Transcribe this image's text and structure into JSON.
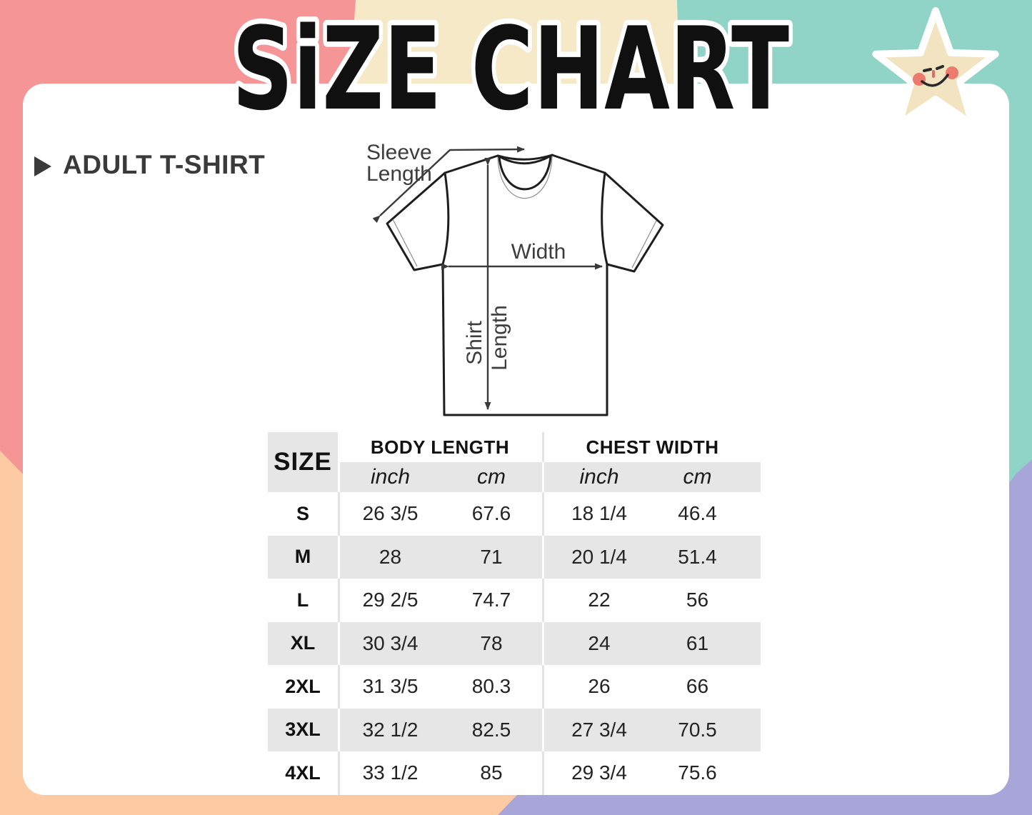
{
  "header": {
    "title": "SiZE CHART"
  },
  "section": {
    "label": "ADULT T-SHIRT"
  },
  "icons": {
    "star": "smiling-star-icon",
    "pointer": "right-triangle-icon"
  },
  "colors": {
    "pink": "#F59596",
    "cream": "#F6E9C8",
    "teal": "#8FD4C6",
    "peach": "#FCCBA3",
    "lavender": "#A8A5D8",
    "row_gray": "#E6E6E6",
    "text_dark": "#3A3A3A",
    "star_fill": "#F2E4C0",
    "cheek_coral": "#EC7A6E"
  },
  "diagram": {
    "sleeve_label_line1": "Sleeve",
    "sleeve_label_line2": "Length",
    "width_label": "Width",
    "shirt_label_line1": "Shirt",
    "shirt_label_line2": "Length"
  },
  "table": {
    "size_header": "SIZE",
    "group_headers": [
      "BODY LENGTH",
      "CHEST WIDTH"
    ],
    "unit_headers": [
      "inch",
      "cm",
      "inch",
      "cm"
    ],
    "rows": [
      {
        "size": "S",
        "body_in": "26 3/5",
        "body_cm": "67.6",
        "chest_in": "18 1/4",
        "chest_cm": "46.4"
      },
      {
        "size": "M",
        "body_in": "28",
        "body_cm": "71",
        "chest_in": "20 1/4",
        "chest_cm": "51.4"
      },
      {
        "size": "L",
        "body_in": "29 2/5",
        "body_cm": "74.7",
        "chest_in": "22",
        "chest_cm": "56"
      },
      {
        "size": "XL",
        "body_in": "30 3/4",
        "body_cm": "78",
        "chest_in": "24",
        "chest_cm": "61"
      },
      {
        "size": "2XL",
        "body_in": "31 3/5",
        "body_cm": "80.3",
        "chest_in": "26",
        "chest_cm": "66"
      },
      {
        "size": "3XL",
        "body_in": "32 1/2",
        "body_cm": "82.5",
        "chest_in": "27 3/4",
        "chest_cm": "70.5"
      },
      {
        "size": "4XL",
        "body_in": "33 1/2",
        "body_cm": "85",
        "chest_in": "29 3/4",
        "chest_cm": "75.6"
      }
    ]
  }
}
